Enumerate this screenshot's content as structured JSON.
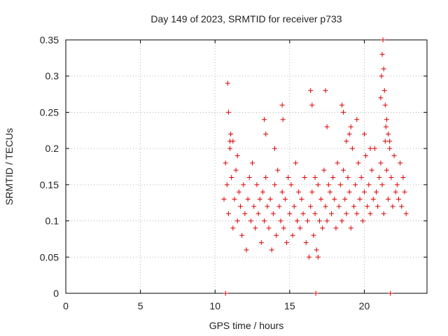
{
  "chart_data": {
    "type": "scatter",
    "title": "Day 149 of 2023, SRMTID for receiver p733",
    "xlabel": "GPS time / hours",
    "ylabel": "SRMTID / TECUs",
    "xlim": [
      0,
      24.2
    ],
    "ylim": [
      0,
      0.35
    ],
    "xticks": [
      0,
      5,
      10,
      15,
      20
    ],
    "xtick_labels": [
      "0",
      "5",
      "10",
      "15",
      "20"
    ],
    "yticks": [
      0,
      0.05,
      0.1,
      0.15,
      0.2,
      0.25,
      0.3,
      0.35
    ],
    "ytick_labels": [
      "0",
      "0.05",
      "0.1",
      "0.15",
      "0.2",
      "0.25",
      "0.3",
      "0.35"
    ],
    "grid": true,
    "marker": "plus",
    "color": "#dd0000",
    "series": [
      {
        "name": "SRMTID",
        "x": [
          10.6,
          10.7,
          10.8,
          10.9,
          11.0,
          11.1,
          11.2,
          11.3,
          11.4,
          11.5,
          11.6,
          11.7,
          11.8,
          11.9,
          12.0,
          12.1,
          12.2,
          12.3,
          12.4,
          12.5,
          12.6,
          12.7,
          12.8,
          12.9,
          13.0,
          13.1,
          13.2,
          13.3,
          13.4,
          13.5,
          13.6,
          13.7,
          13.8,
          13.9,
          14.0,
          14.1,
          14.2,
          14.3,
          14.4,
          14.5,
          14.6,
          14.7,
          14.8,
          14.9,
          15.0,
          15.1,
          15.2,
          15.3,
          15.4,
          15.5,
          15.6,
          15.7,
          15.8,
          15.9,
          16.0,
          16.1,
          16.2,
          16.3,
          16.4,
          16.5,
          16.6,
          16.7,
          16.8,
          16.9,
          17.0,
          17.1,
          17.2,
          17.3,
          17.4,
          17.5,
          17.6,
          17.7,
          17.8,
          17.9,
          18.0,
          18.1,
          18.2,
          18.3,
          18.4,
          18.5,
          18.6,
          18.7,
          18.8,
          18.9,
          19.0,
          19.1,
          19.2,
          19.3,
          19.4,
          19.5,
          19.6,
          19.7,
          19.8,
          19.9,
          20.0,
          20.1,
          20.2,
          20.3,
          20.4,
          20.5,
          20.6,
          20.7,
          20.8,
          20.9,
          21.0,
          21.1,
          21.2,
          21.3,
          21.4,
          21.5,
          21.6,
          21.7,
          21.8,
          21.9,
          22.0,
          22.1,
          22.2,
          22.3,
          22.4,
          22.5,
          22.6,
          22.7,
          22.8,
          10.85,
          10.9,
          11.0,
          11.05,
          11.2,
          11.5,
          13.3,
          13.4,
          14.0,
          14.5,
          14.55,
          16.4,
          16.5,
          16.7,
          16.9,
          17.4,
          17.5,
          18.5,
          18.6,
          18.8,
          19.0,
          19.1,
          19.5,
          20.0,
          20.4,
          21.1,
          21.15,
          21.2,
          21.25,
          21.3,
          21.35,
          21.4,
          21.45,
          21.5,
          21.6,
          21.7,
          10.7,
          16.75,
          21.75
        ],
        "y": [
          0.13,
          0.18,
          0.15,
          0.11,
          0.2,
          0.16,
          0.09,
          0.13,
          0.17,
          0.1,
          0.14,
          0.12,
          0.08,
          0.15,
          0.11,
          0.06,
          0.13,
          0.16,
          0.1,
          0.18,
          0.12,
          0.09,
          0.15,
          0.11,
          0.13,
          0.07,
          0.14,
          0.1,
          0.16,
          0.12,
          0.09,
          0.13,
          0.06,
          0.11,
          0.15,
          0.08,
          0.17,
          0.12,
          0.1,
          0.14,
          0.09,
          0.13,
          0.07,
          0.16,
          0.11,
          0.15,
          0.08,
          0.12,
          0.18,
          0.1,
          0.14,
          0.09,
          0.13,
          0.11,
          0.16,
          0.07,
          0.1,
          0.05,
          0.12,
          0.14,
          0.08,
          0.11,
          0.06,
          0.15,
          0.1,
          0.13,
          0.09,
          0.17,
          0.12,
          0.1,
          0.15,
          0.14,
          0.11,
          0.16,
          0.13,
          0.09,
          0.18,
          0.12,
          0.15,
          0.1,
          0.17,
          0.13,
          0.11,
          0.16,
          0.14,
          0.09,
          0.2,
          0.12,
          0.15,
          0.11,
          0.18,
          0.13,
          0.16,
          0.1,
          0.14,
          0.19,
          0.12,
          0.15,
          0.11,
          0.17,
          0.13,
          0.2,
          0.14,
          0.12,
          0.16,
          0.18,
          0.15,
          0.11,
          0.21,
          0.17,
          0.13,
          0.2,
          0.16,
          0.12,
          0.19,
          0.14,
          0.15,
          0.13,
          0.18,
          0.12,
          0.16,
          0.14,
          0.11,
          0.29,
          0.25,
          0.21,
          0.22,
          0.21,
          0.19,
          0.24,
          0.22,
          0.2,
          0.26,
          0.24,
          0.28,
          0.26,
          0.16,
          0.05,
          0.28,
          0.23,
          0.26,
          0.25,
          0.21,
          0.22,
          0.23,
          0.24,
          0.22,
          0.2,
          0.27,
          0.3,
          0.33,
          0.35,
          0.31,
          0.28,
          0.26,
          0.23,
          0.24,
          0.22,
          0.21,
          0.0,
          0.0,
          0.0
        ]
      }
    ]
  }
}
